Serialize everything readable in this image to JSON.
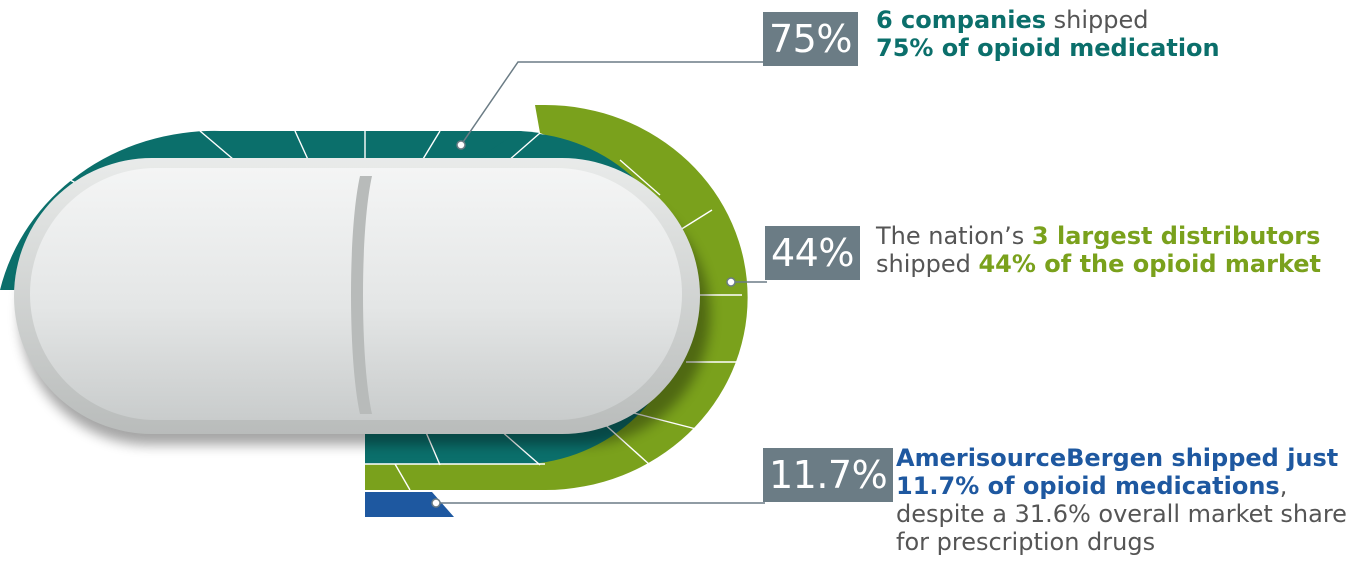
{
  "colors": {
    "teal": "#0b6f6b",
    "green": "#7aa11c",
    "blue": "#1e58a0",
    "badge": "#6b7c85",
    "text": "#555555"
  },
  "chart_data": {
    "type": "infographic-arcs",
    "title": "",
    "series": [
      {
        "key": "six_companies",
        "value": 75,
        "badge": "75%",
        "color": "#0b6f6b",
        "text": {
          "line1_bold": "6 companies",
          "line1_rest": " shipped",
          "line2_bold": "75% of opioid medication"
        }
      },
      {
        "key": "three_distributors",
        "value": 44,
        "badge": "44%",
        "color": "#7aa11c",
        "text": {
          "line1_pre": "The nation’s ",
          "line1_bold": "3 largest distributors",
          "line2_pre": "shipped ",
          "line2_bold": "44% of the opioid market"
        }
      },
      {
        "key": "amerisourcebergen",
        "value": 11.7,
        "badge": "11.7%",
        "color": "#1e58a0",
        "text": {
          "line1_bold": "AmerisourceBergen shipped just",
          "line2_bold": "11.7% of opioid medications",
          "line2_rest": ",",
          "line3": "despite a 31.6% overall market share",
          "line4": "for prescription drugs"
        }
      }
    ]
  }
}
